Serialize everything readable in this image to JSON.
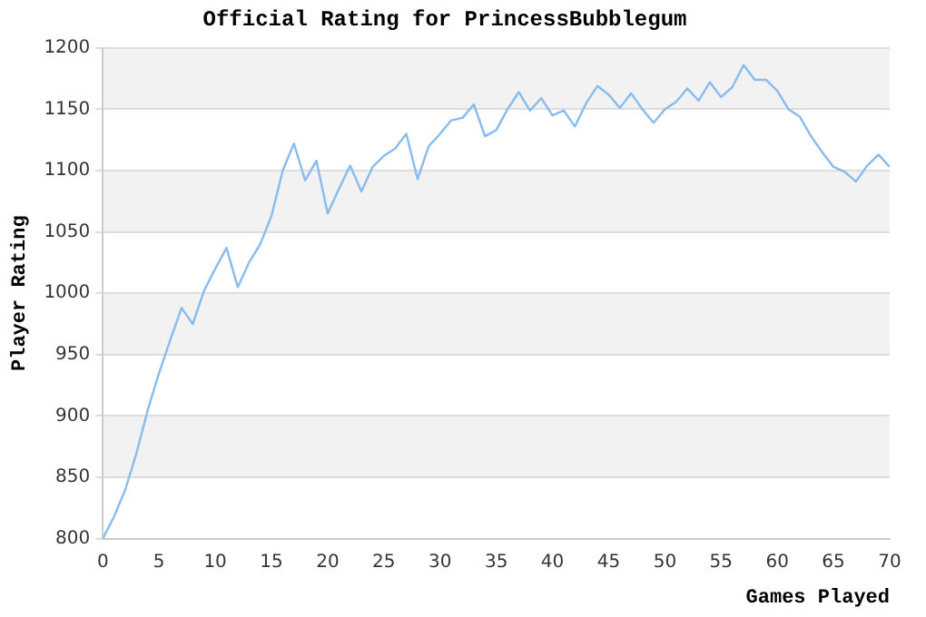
{
  "chart_data": {
    "type": "line",
    "title": "Official Rating for PrincessBubblegum",
    "xlabel": "Games Played",
    "ylabel": "Player Rating",
    "x": [
      0,
      1,
      2,
      3,
      4,
      5,
      6,
      7,
      8,
      9,
      10,
      11,
      12,
      13,
      14,
      15,
      16,
      17,
      18,
      19,
      20,
      21,
      22,
      23,
      24,
      25,
      26,
      27,
      28,
      29,
      30,
      31,
      32,
      33,
      34,
      35,
      36,
      37,
      38,
      39,
      40,
      41,
      42,
      43,
      44,
      45,
      46,
      47,
      48,
      49,
      50,
      51,
      52,
      53,
      54,
      55,
      56,
      57,
      58,
      59,
      60,
      61,
      62,
      63,
      64,
      65,
      66,
      67,
      68,
      69,
      70
    ],
    "series": [
      {
        "color": "#88bbee",
        "values": [
          800,
          818,
          840,
          870,
          905,
          935,
          962,
          988,
          975,
          1002,
          1020,
          1037,
          1005,
          1025,
          1040,
          1063,
          1100,
          1122,
          1092,
          1108,
          1065,
          1085,
          1104,
          1083,
          1103,
          1112,
          1118,
          1130,
          1093,
          1120,
          1130,
          1141,
          1143,
          1154,
          1128,
          1133,
          1150,
          1164,
          1149,
          1159,
          1145,
          1149,
          1136,
          1155,
          1169,
          1162,
          1151,
          1163,
          1150,
          1139,
          1150,
          1156,
          1167,
          1157,
          1172,
          1160,
          1168,
          1186,
          1174,
          1174,
          1165,
          1150,
          1144,
          1128,
          1115,
          1103,
          1099,
          1091,
          1104,
          1113,
          1103
        ]
      }
    ],
    "xlim": [
      0,
      70
    ],
    "xticks": [
      0,
      5,
      10,
      15,
      20,
      25,
      30,
      35,
      40,
      45,
      50,
      55,
      60,
      65,
      70
    ],
    "ylim": [
      800,
      1200
    ],
    "yticks": [
      800,
      850,
      900,
      950,
      1000,
      1050,
      1100,
      1150,
      1200
    ],
    "grid": "y",
    "legend": false,
    "marker": "none",
    "line_style": "solid"
  }
}
